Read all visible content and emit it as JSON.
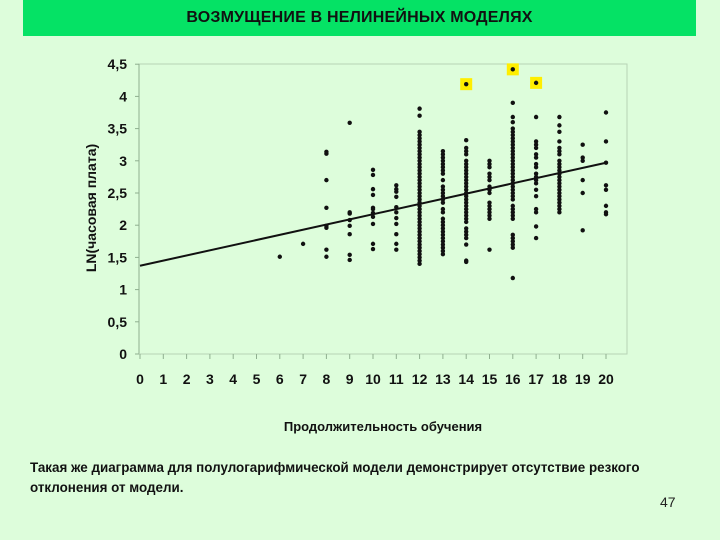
{
  "slide": {
    "title": "ВОЗМУЩЕНИЕ В НЕЛИНЕЙНЫХ МОДЕЛЯХ",
    "caption": "Такая же диаграмма для полулогарифмической модели демонстрирует отсутствие резкого отклонения от модели.",
    "page_number": "47"
  },
  "colors": {
    "background": "#ddfddb",
    "title_bar": "#05e265",
    "points": "#111111",
    "highlight": "#ffee00",
    "axis": "#8faf8f"
  },
  "chart_data": {
    "type": "scatter",
    "title": "",
    "xlabel": "Продолжительность обучения",
    "ylabel": "LN(часовая плата)",
    "xlim": [
      0,
      20
    ],
    "ylim": [
      0,
      4.5
    ],
    "x_ticks": [
      "0",
      "1",
      "2",
      "3",
      "4",
      "5",
      "6",
      "7",
      "8",
      "9",
      "10",
      "11",
      "12",
      "13",
      "14",
      "15",
      "16",
      "17",
      "18",
      "19",
      "20"
    ],
    "y_ticks": [
      "0",
      "0,5",
      "1",
      "1,5",
      "2",
      "2,5",
      "3",
      "3,5",
      "4",
      "4,5"
    ],
    "grid": false,
    "legend": null,
    "regression_line": {
      "x": [
        0,
        20
      ],
      "y": [
        1.37,
        2.97
      ]
    },
    "highlighted_points": [
      {
        "x": 14,
        "y": 4.19
      },
      {
        "x": 16,
        "y": 4.42
      },
      {
        "x": 17,
        "y": 4.21
      }
    ],
    "points_by_x": [
      {
        "x": 6,
        "y": [
          1.51
        ]
      },
      {
        "x": 7,
        "y": [
          1.71
        ]
      },
      {
        "x": 8,
        "y": [
          3.14,
          3.11,
          2.7,
          2.27,
          1.99,
          1.96,
          1.62,
          1.51
        ]
      },
      {
        "x": 9,
        "y": [
          3.59,
          2.2,
          2.18,
          2.08,
          1.99,
          1.86,
          1.54,
          1.46
        ]
      },
      {
        "x": 10,
        "y": [
          2.86,
          2.78,
          2.56,
          2.47,
          2.27,
          2.25,
          2.19,
          2.13,
          2.02,
          1.71,
          1.63
        ]
      },
      {
        "x": 11,
        "y": [
          2.62,
          2.56,
          2.52,
          2.44,
          2.28,
          2.2,
          2.11,
          2.02,
          1.86,
          1.71,
          1.62
        ]
      },
      {
        "x": 12,
        "y": [
          3.81,
          3.7,
          3.45,
          3.4,
          3.35,
          3.3,
          3.25,
          3.2,
          3.15,
          3.1,
          3.05,
          3.0,
          2.95,
          2.9,
          2.85,
          2.8,
          2.75,
          2.7,
          2.65,
          2.6,
          2.55,
          2.5,
          2.45,
          2.4,
          2.35,
          2.3,
          2.25,
          2.2,
          2.15,
          2.1,
          2.05,
          2.0,
          1.95,
          1.9,
          1.85,
          1.8,
          1.75,
          1.7,
          1.65,
          1.6,
          1.55,
          1.5,
          1.45,
          1.4
        ]
      },
      {
        "x": 13,
        "y": [
          3.15,
          3.1,
          3.05,
          3.0,
          2.95,
          2.9,
          2.85,
          2.8,
          2.7,
          2.6,
          2.55,
          2.5,
          2.45,
          2.4,
          2.35,
          2.25,
          2.2,
          2.1,
          2.05,
          2.0,
          1.95,
          1.9,
          1.85,
          1.8,
          1.75,
          1.7,
          1.65,
          1.6,
          1.55
        ]
      },
      {
        "x": 14,
        "y": [
          3.32,
          3.2,
          3.15,
          3.1,
          3.0,
          2.95,
          2.9,
          2.85,
          2.8,
          2.75,
          2.7,
          2.65,
          2.6,
          2.55,
          2.5,
          2.45,
          2.4,
          2.35,
          2.3,
          2.25,
          2.2,
          2.15,
          2.1,
          2.05,
          1.95,
          1.9,
          1.85,
          1.8,
          1.7,
          1.45,
          1.43
        ]
      },
      {
        "x": 15,
        "y": [
          3.0,
          2.95,
          2.9,
          2.8,
          2.75,
          2.7,
          2.6,
          2.55,
          2.5,
          2.35,
          2.3,
          2.25,
          2.2,
          2.15,
          2.1,
          1.62
        ]
      },
      {
        "x": 16,
        "y": [
          3.9,
          3.68,
          3.6,
          3.5,
          3.45,
          3.4,
          3.35,
          3.3,
          3.25,
          3.2,
          3.15,
          3.1,
          3.05,
          3.0,
          2.95,
          2.9,
          2.85,
          2.8,
          2.75,
          2.7,
          2.65,
          2.6,
          2.55,
          2.5,
          2.45,
          2.4,
          2.3,
          2.25,
          2.2,
          2.15,
          2.1,
          1.85,
          1.8,
          1.75,
          1.7,
          1.65,
          1.18
        ]
      },
      {
        "x": 17,
        "y": [
          3.68,
          3.3,
          3.25,
          3.2,
          3.1,
          3.05,
          2.95,
          2.9,
          2.8,
          2.75,
          2.7,
          2.65,
          2.55,
          2.45,
          2.25,
          2.2,
          1.98,
          1.8
        ]
      },
      {
        "x": 18,
        "y": [
          3.68,
          3.55,
          3.45,
          3.3,
          3.2,
          3.15,
          3.1,
          3.0,
          2.95,
          2.9,
          2.85,
          2.8,
          2.75,
          2.7,
          2.65,
          2.6,
          2.55,
          2.5,
          2.45,
          2.4,
          2.35,
          2.3,
          2.25,
          2.2
        ]
      },
      {
        "x": 19,
        "y": [
          3.25,
          3.05,
          3.0,
          2.7,
          2.5,
          1.92
        ]
      },
      {
        "x": 20,
        "y": [
          3.75,
          3.3,
          2.97,
          2.62,
          2.55,
          2.3,
          2.2,
          2.17
        ]
      }
    ]
  }
}
